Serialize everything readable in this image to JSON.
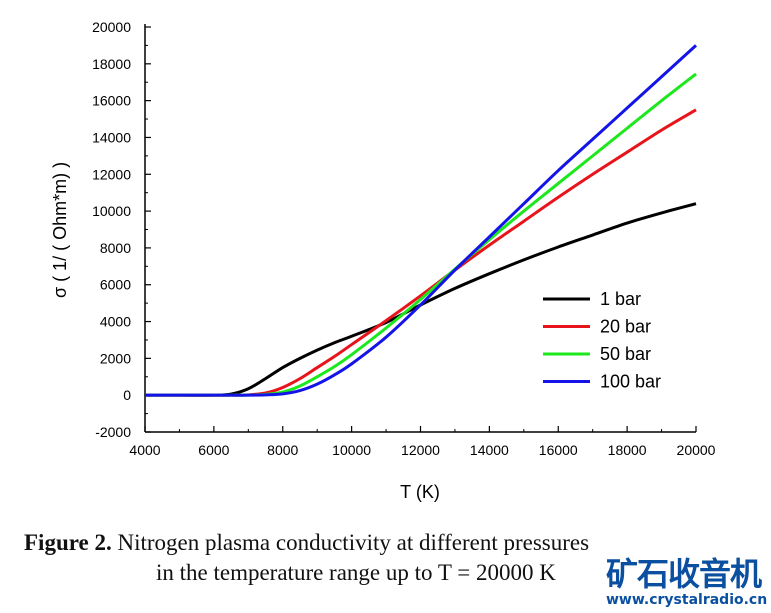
{
  "chart_data": {
    "type": "line",
    "title": "",
    "xlabel": "T (K)",
    "ylabel": "σ  ( 1/ ( Ohm*m)  )",
    "xlim": [
      4000,
      20000
    ],
    "ylim": [
      -2000,
      20000
    ],
    "xticks": [
      "4000",
      "6000",
      "8000",
      "10000",
      "12000",
      "14000",
      "16000",
      "18000",
      "20000"
    ],
    "yticks": [
      "-2000",
      "0",
      "2000",
      "4000",
      "6000",
      "8000",
      "10000",
      "12000",
      "14000",
      "16000",
      "18000",
      "20000"
    ],
    "grid": false,
    "legend_position": "right-center",
    "x": [
      4000,
      5000,
      6000,
      6500,
      7000,
      7500,
      8000,
      8500,
      9000,
      9500,
      10000,
      11000,
      12000,
      13000,
      14000,
      15000,
      16000,
      17000,
      18000,
      19000,
      20000
    ],
    "series": [
      {
        "name": "1 bar",
        "color": "#000000",
        "values": [
          0,
          0,
          0,
          60,
          350,
          900,
          1500,
          2000,
          2450,
          2850,
          3200,
          3950,
          4900,
          5800,
          6600,
          7350,
          8050,
          8700,
          9350,
          9900,
          10400
        ]
      },
      {
        "name": "20 bar",
        "color": "#e8141b",
        "values": [
          0,
          0,
          0,
          0,
          20,
          120,
          420,
          900,
          1500,
          2100,
          2750,
          4050,
          5400,
          6800,
          8150,
          9450,
          10750,
          12000,
          13200,
          14400,
          15500
        ]
      },
      {
        "name": "50 bar",
        "color": "#1de81d",
        "values": [
          0,
          0,
          0,
          0,
          5,
          40,
          170,
          500,
          1000,
          1550,
          2200,
          3650,
          5200,
          6850,
          8450,
          10000,
          11500,
          13000,
          14500,
          16000,
          17450
        ]
      },
      {
        "name": "100 bar",
        "color": "#1414e8",
        "values": [
          0,
          0,
          0,
          0,
          0,
          15,
          70,
          250,
          600,
          1100,
          1700,
          3150,
          4900,
          6800,
          8600,
          10400,
          12200,
          13900,
          15600,
          17300,
          19000
        ]
      }
    ]
  },
  "caption": {
    "label": "Figure 2.",
    "line1": "Nitrogen plasma conductivity at different pressures",
    "line2": "in the temperature range up to  T = 20000 K"
  },
  "watermark": {
    "text": "矿石收音机",
    "url": "www.crystalradio.cn"
  }
}
